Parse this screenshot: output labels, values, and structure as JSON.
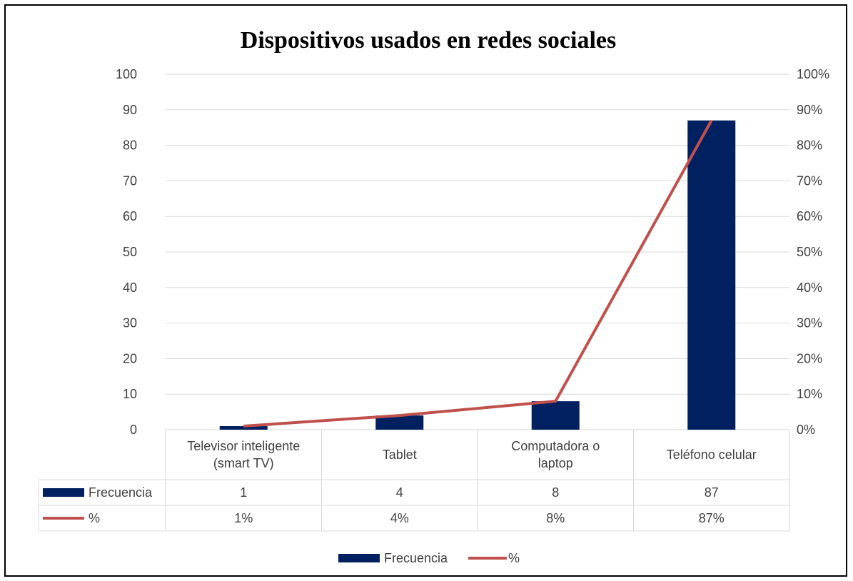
{
  "chart_data": {
    "type": "bar",
    "title": "Dispositivos usados en redes sociales",
    "categories": [
      [
        "Televisor inteligente",
        "(smart TV)"
      ],
      [
        "Tablet"
      ],
      [
        "Computadora o",
        "laptop"
      ],
      [
        "Teléfono celular"
      ]
    ],
    "series": [
      {
        "name": "Frecuencia",
        "type": "bar",
        "axis": "left",
        "color": "#002060",
        "values": [
          1,
          4,
          8,
          87
        ],
        "labels": [
          "1",
          "4",
          "8",
          "87"
        ]
      },
      {
        "name": "%",
        "type": "line",
        "axis": "right",
        "color": "#c0504d",
        "values": [
          0.01,
          0.04,
          0.08,
          0.87
        ],
        "labels": [
          "1%",
          "4%",
          "8%",
          "87%"
        ]
      }
    ],
    "y_left": {
      "ylim": [
        0,
        100
      ],
      "ticks": [
        "0",
        "10",
        "20",
        "30",
        "40",
        "50",
        "60",
        "70",
        "80",
        "90",
        "100"
      ]
    },
    "y_right": {
      "ylim": [
        0,
        1
      ],
      "ticks": [
        "0%",
        "10%",
        "20%",
        "30%",
        "40%",
        "50%",
        "60%",
        "70%",
        "80%",
        "90%",
        "100%"
      ]
    },
    "grid": true,
    "data_table": true,
    "legend": "bottom"
  }
}
